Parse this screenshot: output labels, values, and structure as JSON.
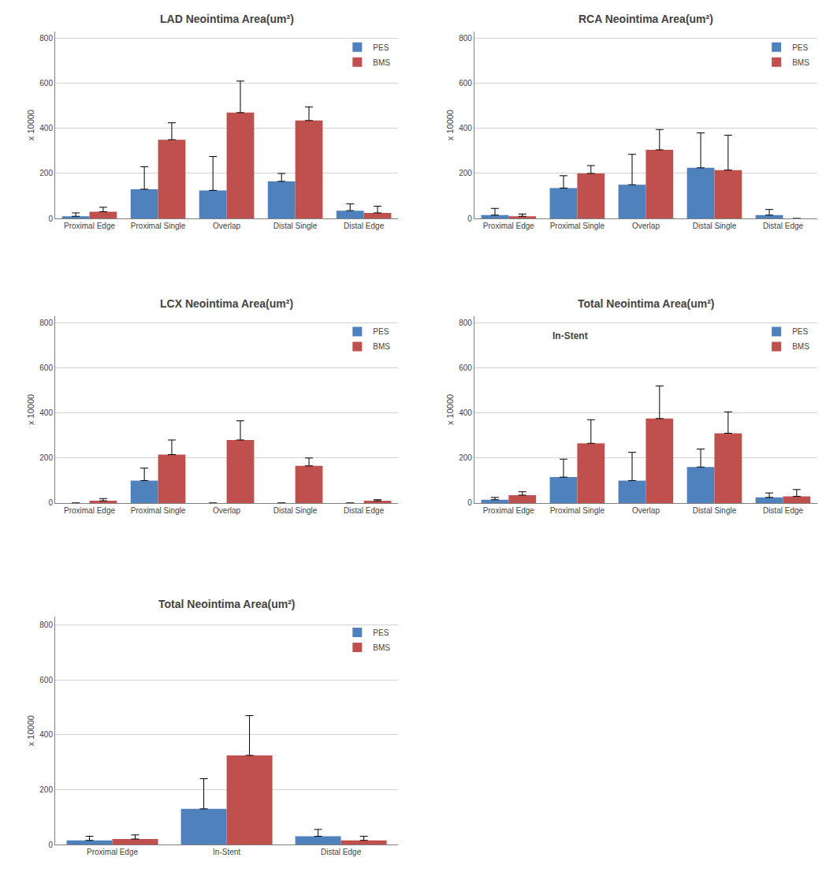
{
  "chart_data": [
    {
      "type": "bar",
      "title": "LAD Neointima Area(um²)",
      "categories": [
        "Proximal Edge",
        "Proximal Single",
        "Overlap",
        "Distal Single",
        "Distal Edge"
      ],
      "series": [
        {
          "name": "PES",
          "color": "#4f81bd",
          "values": [
            10,
            130,
            125,
            165,
            35
          ],
          "errors": [
            15,
            100,
            150,
            35,
            30
          ]
        },
        {
          "name": "BMS",
          "color": "#c0504d",
          "values": [
            30,
            350,
            470,
            435,
            25
          ],
          "errors": [
            20,
            75,
            140,
            60,
            30
          ]
        }
      ],
      "ylabel": "x 10000",
      "ylim": [
        0,
        830
      ],
      "yticks": [
        0,
        200,
        400,
        600,
        800
      ],
      "grid": true,
      "legend": "upper right"
    },
    {
      "type": "bar",
      "title": "RCA Neointima Area(um²)",
      "categories": [
        "Proximal Edge",
        "Proximal Single",
        "Overlap",
        "Distal Single",
        "Distal Edge"
      ],
      "series": [
        {
          "name": "PES",
          "color": "#4f81bd",
          "values": [
            15,
            135,
            150,
            225,
            15
          ],
          "errors": [
            30,
            55,
            135,
            155,
            25
          ]
        },
        {
          "name": "BMS",
          "color": "#c0504d",
          "values": [
            10,
            200,
            305,
            215,
            0
          ],
          "errors": [
            10,
            35,
            90,
            155,
            0
          ]
        }
      ],
      "ylabel": "x 10000",
      "ylim": [
        0,
        830
      ],
      "yticks": [
        0,
        200,
        400,
        600,
        800
      ],
      "grid": true,
      "legend": "upper right"
    },
    {
      "type": "bar",
      "title": "LCX Neointima Area(um²)",
      "categories": [
        "Proximal Edge",
        "Proximal Single",
        "Overlap",
        "Distal Single",
        "Distal Edge"
      ],
      "series": [
        {
          "name": "PES",
          "color": "#4f81bd",
          "values": [
            0,
            100,
            0,
            0,
            0
          ],
          "errors": [
            0,
            55,
            0,
            0,
            0
          ]
        },
        {
          "name": "BMS",
          "color": "#c0504d",
          "values": [
            10,
            215,
            280,
            165,
            10
          ],
          "errors": [
            10,
            65,
            85,
            35,
            5
          ]
        }
      ],
      "ylabel": "x 10000",
      "ylim": [
        0,
        830
      ],
      "yticks": [
        0,
        200,
        400,
        600,
        800
      ],
      "grid": true,
      "legend": "upper right"
    },
    {
      "type": "bar",
      "title": "Total Neointima Area(um²)",
      "subtitle": "In-Stent",
      "categories": [
        "Proximal Edge",
        "Proximal Single",
        "Overlap",
        "Distal Single",
        "Distal Edge"
      ],
      "series": [
        {
          "name": "PES",
          "color": "#4f81bd",
          "values": [
            15,
            115,
            100,
            160,
            25
          ],
          "errors": [
            10,
            80,
            125,
            80,
            20
          ]
        },
        {
          "name": "BMS",
          "color": "#c0504d",
          "values": [
            35,
            265,
            375,
            310,
            30
          ],
          "errors": [
            15,
            105,
            145,
            95,
            30
          ]
        }
      ],
      "ylabel": "x 10000",
      "ylim": [
        0,
        830
      ],
      "yticks": [
        0,
        200,
        400,
        600,
        800
      ],
      "grid": true,
      "legend": "upper right"
    },
    {
      "type": "bar",
      "title": "Total Neointima Area(um²)",
      "categories": [
        "Proximal Edge",
        "In-Stent",
        "Distal Edge"
      ],
      "series": [
        {
          "name": "PES",
          "color": "#4f81bd",
          "values": [
            15,
            130,
            30
          ],
          "errors": [
            15,
            110,
            25
          ]
        },
        {
          "name": "BMS",
          "color": "#c0504d",
          "values": [
            20,
            325,
            15
          ],
          "errors": [
            15,
            145,
            15
          ]
        }
      ],
      "ylabel": "x 10000",
      "ylim": [
        0,
        830
      ],
      "yticks": [
        0,
        200,
        400,
        600,
        800
      ],
      "grid": true,
      "legend": "upper right"
    }
  ]
}
